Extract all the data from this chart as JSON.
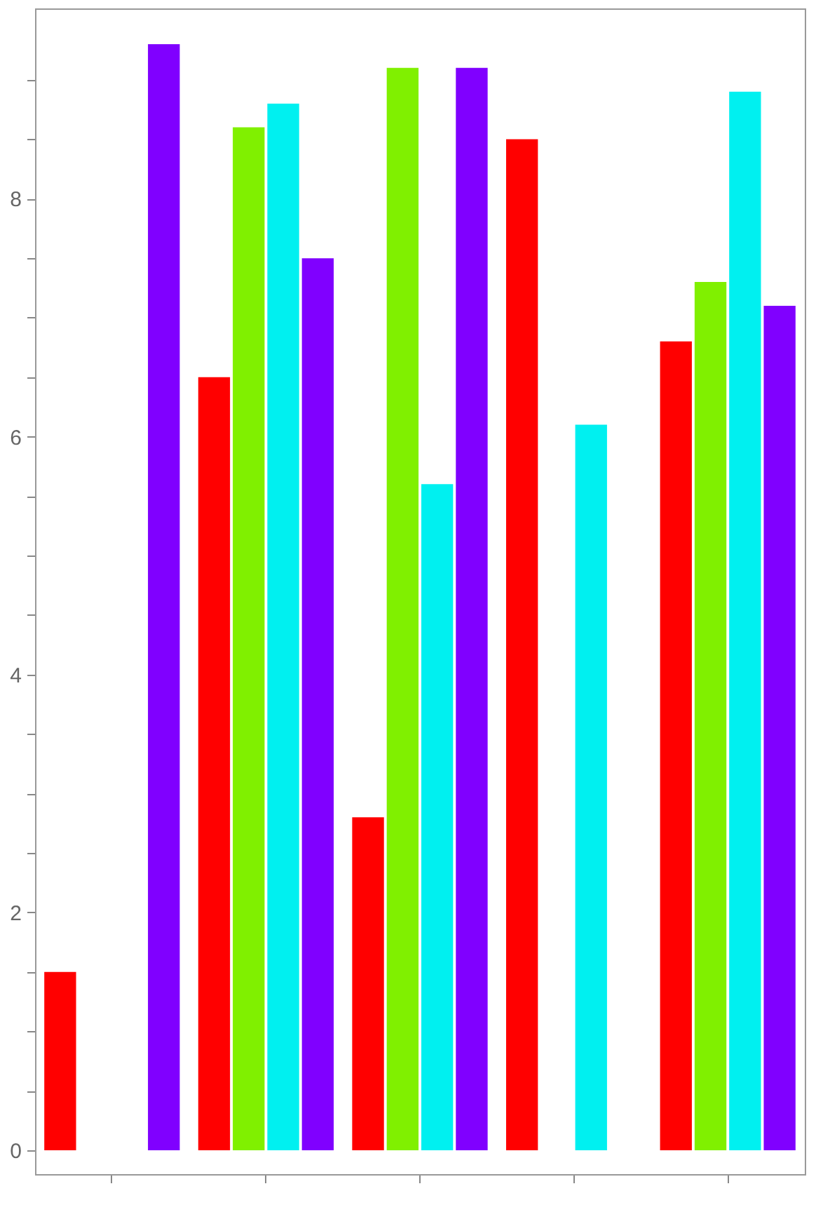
{
  "chart_data": {
    "type": "bar",
    "categories": [
      null,
      null,
      null,
      null,
      null
    ],
    "series": [
      {
        "color": "#ff0000",
        "values": [
          1.5,
          6.5,
          2.8,
          8.5,
          6.8
        ]
      },
      {
        "color": "#80f000",
        "values": [
          null,
          8.6,
          9.1,
          null,
          7.3
        ]
      },
      {
        "color": "#00f0f0",
        "values": [
          null,
          8.8,
          5.6,
          6.1,
          8.9
        ]
      },
      {
        "color": "#8000ff",
        "values": [
          9.3,
          7.5,
          9.1,
          null,
          7.1
        ]
      }
    ],
    "ylim": [
      -0.2,
      9.6
    ],
    "yticks": [
      0,
      {
        "value": 0.5,
        "label": null
      },
      {
        "value": 1,
        "label": null
      },
      {
        "value": 1.5,
        "label": null
      },
      2,
      {
        "value": 2.5,
        "label": null
      },
      {
        "value": 3,
        "label": null
      },
      {
        "value": 3.5,
        "label": null
      },
      4,
      {
        "value": 4.5,
        "label": null
      },
      {
        "value": 5,
        "label": null
      },
      {
        "value": 5.5,
        "label": null
      },
      6,
      {
        "value": 6.5,
        "label": null
      },
      {
        "value": 7,
        "label": null
      },
      {
        "value": 7.5,
        "label": null
      },
      8,
      {
        "value": 8.5,
        "label": null
      },
      {
        "value": 9,
        "label": null
      }
    ],
    "tick_labels": "y"
  }
}
